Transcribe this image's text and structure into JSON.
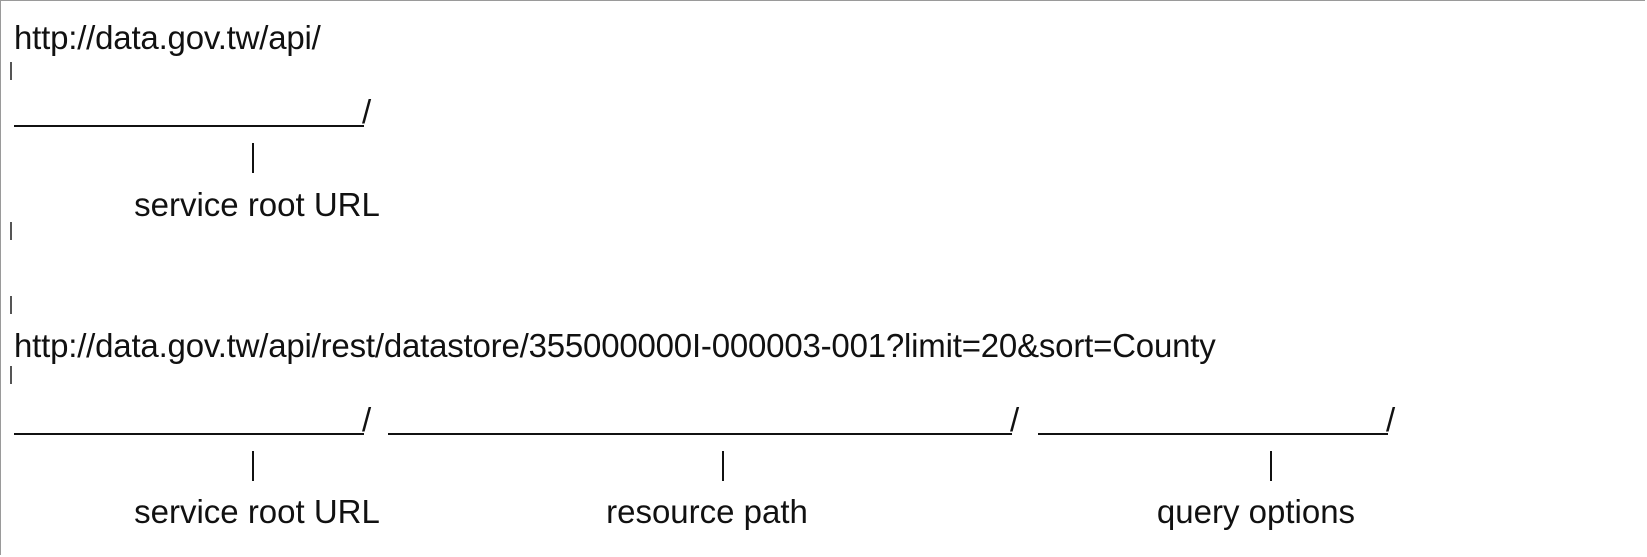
{
  "diagram": {
    "example1": {
      "url": "http://data.gov.tw/api/",
      "segments": [
        {
          "label": "service root URL"
        }
      ]
    },
    "example2": {
      "url": "http://data.gov.tw/api/rest/datastore/355000000I-000003-001?limit=20&sort=County",
      "segments": [
        {
          "label": "service root URL"
        },
        {
          "label": "resource path"
        },
        {
          "label": "query options"
        }
      ]
    }
  }
}
